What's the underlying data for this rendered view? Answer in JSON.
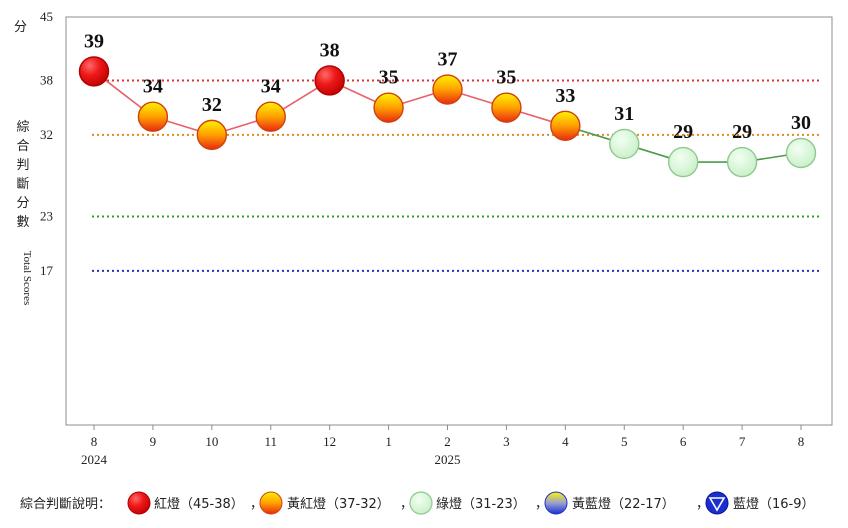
{
  "chart_data": {
    "type": "line",
    "y_unit_label": "分",
    "ylabel_cn": "綜合判斷分數",
    "ylabel_en": "Total Scores",
    "ylim": [
      0,
      45
    ],
    "yticks": [
      17,
      23,
      32,
      38,
      45
    ],
    "reference_lines": [
      {
        "value": 38,
        "color": "#e03030"
      },
      {
        "value": 32,
        "color": "#e08a1a"
      },
      {
        "value": 23,
        "color": "#2aa02a"
      },
      {
        "value": 17,
        "color": "#2030c0"
      }
    ],
    "categories": [
      "8",
      "9",
      "10",
      "11",
      "12",
      "1",
      "2",
      "3",
      "4",
      "5",
      "6",
      "7",
      "8"
    ],
    "year_labels": [
      {
        "index": 0,
        "label": "2024"
      },
      {
        "index": 6,
        "label": "2025"
      }
    ],
    "values": [
      39,
      34,
      32,
      34,
      38,
      35,
      37,
      35,
      33,
      31,
      29,
      29,
      30
    ],
    "signals": [
      "red",
      "yellow-red",
      "yellow-red",
      "yellow-red",
      "red",
      "yellow-red",
      "yellow-red",
      "yellow-red",
      "yellow-red",
      "green",
      "green",
      "green",
      "green"
    ],
    "grid": false
  },
  "legend": {
    "title": "綜合判斷說明：",
    "items": [
      {
        "icon": "red-light-icon",
        "label": "紅燈（45-38）"
      },
      {
        "icon": "yellow-red-light-icon",
        "label": "黃紅燈（37-32）"
      },
      {
        "icon": "green-light-icon",
        "label": "綠燈（31-23）"
      },
      {
        "icon": "yellow-blue-light-icon",
        "label": "黃藍燈（22-17）"
      },
      {
        "icon": "blue-light-icon",
        "label": "藍燈（16-9）"
      }
    ],
    "separator": "，"
  },
  "colors": {
    "red": "#e8101a",
    "yellow_red_top": "#ffe000",
    "yellow_red_bottom": "#f03a10",
    "green_fill": "#d8f5d8",
    "green_stroke": "#8fc88f",
    "blue": "#1a2fd0",
    "line_red": "#e8606a",
    "line_green": "#4a9a4a"
  }
}
